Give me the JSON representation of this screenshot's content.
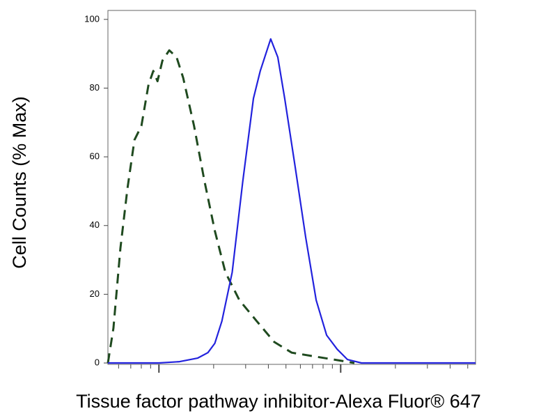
{
  "chart_data": {
    "type": "line",
    "x_label": "Tissue factor pathway inhibitor-Alexa Fluor® 647",
    "y_label": "Cell Counts (% Max)",
    "xscale": "log",
    "xlim": [
      5.24,
      552
    ],
    "xticks": [
      10,
      100
    ],
    "xminorticks": [
      6,
      7,
      8,
      9,
      20,
      30,
      40,
      50,
      60,
      70,
      80,
      90,
      200,
      300,
      400,
      500
    ],
    "ylim": [
      -0.4,
      102.6
    ],
    "yticks": [
      0,
      20,
      40,
      60,
      80,
      100
    ],
    "series": [
      {
        "color": "#1f4a1f",
        "dash": true,
        "x": [
          5.24,
          5.62,
          6.14,
          6.71,
          7.33,
          8.01,
          8.76,
          9.31,
          9.82,
          10.45,
          11.4,
          12.5,
          13.6,
          15.6,
          17.8,
          20.3,
          23.2,
          27.7,
          34.5,
          43.1,
          53.8,
          70.2,
          91.5,
          119
        ],
        "values": [
          0,
          10.1,
          33.5,
          50.7,
          64.9,
          69,
          81,
          85,
          82,
          88,
          91,
          89,
          83,
          69,
          53,
          38.5,
          26.4,
          18.3,
          12.2,
          6.1,
          3,
          2,
          1,
          0
        ]
      },
      {
        "color": "#2222dd",
        "dash": false,
        "x": [
          5.24,
          7.67,
          10,
          13.0,
          16.3,
          18.6,
          20.3,
          22.2,
          25.3,
          28.9,
          33.1,
          36.1,
          41.2,
          45.1,
          49.2,
          56.2,
          64.2,
          73.3,
          83.7,
          95.7,
          109,
          130,
          552
        ],
        "values": [
          0,
          0,
          0,
          0.4,
          1.4,
          3,
          5.7,
          12.2,
          26.4,
          52.7,
          77,
          85,
          94.3,
          89,
          77,
          57,
          36.5,
          18.3,
          8.1,
          4,
          1,
          0,
          0
        ]
      }
    ]
  }
}
